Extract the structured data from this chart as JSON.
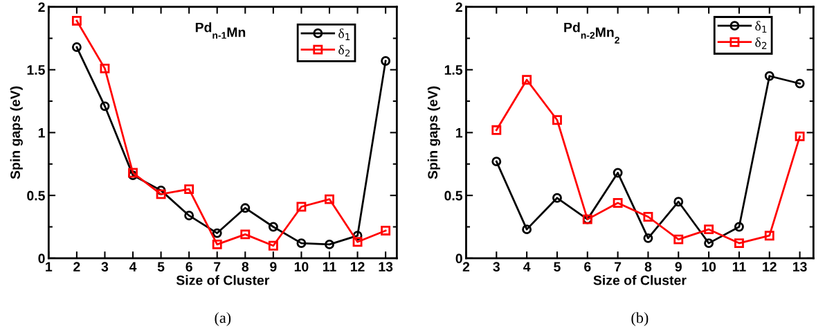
{
  "chart_data": [
    {
      "type": "line",
      "title": "Pd$_{n-1}$Mn",
      "xlabel": "Size of Cluster",
      "ylabel": "Spin gaps (eV)",
      "annotations": [
        "(a)"
      ],
      "xlim": [
        1,
        13.4
      ],
      "xticks": [
        1,
        2,
        3,
        4,
        5,
        6,
        7,
        8,
        9,
        10,
        11,
        12,
        13
      ],
      "ylim": [
        0,
        2
      ],
      "yticks": [
        0,
        0.5,
        1,
        1.5,
        2
      ],
      "x": [
        2,
        3,
        4,
        5,
        6,
        7,
        8,
        9,
        10,
        11,
        12,
        13
      ],
      "legend": "top right",
      "grid": false,
      "series": [
        {
          "name": "δ$_{1}$",
          "color": "#000000",
          "marker": "circle",
          "values": [
            1.68,
            1.21,
            0.66,
            0.54,
            0.34,
            0.2,
            0.4,
            0.25,
            0.12,
            0.11,
            0.18,
            1.57
          ]
        },
        {
          "name": "δ$_{2}$",
          "color": "#ff0000",
          "marker": "square",
          "values": [
            1.89,
            1.51,
            0.68,
            0.51,
            0.55,
            0.11,
            0.19,
            0.1,
            0.41,
            0.47,
            0.13,
            0.22
          ]
        }
      ]
    },
    {
      "type": "line",
      "title": "Pd$_{n-2}$Mn$_{2}$",
      "xlabel": "Size of Cluster",
      "ylabel": "Spin gaps (eV)",
      "annotations": [
        "(b)"
      ],
      "xlim": [
        2,
        13.45
      ],
      "xticks": [
        2,
        3,
        4,
        5,
        6,
        7,
        8,
        9,
        10,
        11,
        12,
        13
      ],
      "ylim": [
        0,
        2
      ],
      "yticks": [
        0,
        0.5,
        1,
        1.5,
        2
      ],
      "x": [
        3,
        4,
        5,
        6,
        7,
        8,
        9,
        10,
        11,
        12,
        13
      ],
      "legend": "top right",
      "grid": false,
      "series": [
        {
          "name": "δ$_{1}$",
          "color": "#000000",
          "marker": "circle",
          "values": [
            0.77,
            0.23,
            0.48,
            0.31,
            0.68,
            0.16,
            0.45,
            0.12,
            0.25,
            1.45,
            1.39
          ]
        },
        {
          "name": "δ$_{2}$",
          "color": "#ff0000",
          "marker": "square",
          "values": [
            1.02,
            1.42,
            1.1,
            0.31,
            0.44,
            0.33,
            0.15,
            0.23,
            0.12,
            0.18,
            0.97
          ]
        }
      ]
    }
  ]
}
